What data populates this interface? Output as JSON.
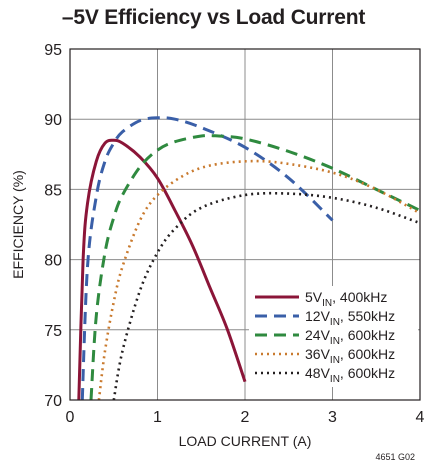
{
  "title": "–5V Efficiency vs Load Current",
  "figure_ref": "4651 G02",
  "chart_data": {
    "type": "line",
    "title": "–5V Efficiency vs Load Current",
    "xlabel": "LOAD CURRENT (A)",
    "ylabel": "EFFICIENCY (%)",
    "xlim": [
      0,
      4
    ],
    "ylim": [
      70,
      95
    ],
    "xticks": [
      "0",
      "1",
      "2",
      "3",
      "4"
    ],
    "yticks": [
      "70",
      "75",
      "80",
      "85",
      "90",
      "95"
    ],
    "grid": true,
    "legend_position": "bottom-right",
    "series": [
      {
        "name": "5VIN, 400kHz",
        "vin": "5V",
        "sub": "IN",
        "freq": ", 400kHz",
        "color": "#8b1538",
        "style": "solid",
        "x": [
          0.1,
          0.15,
          0.2,
          0.3,
          0.4,
          0.5,
          0.6,
          0.8,
          1.0,
          1.2,
          1.4,
          1.6,
          1.8,
          2.0
        ],
        "y": [
          70,
          80,
          84,
          87,
          88.3,
          88.5,
          88.3,
          87.3,
          85.8,
          83.5,
          81,
          78,
          75,
          71.3
        ]
      },
      {
        "name": "12VIN, 550kHz",
        "vin": "12V",
        "sub": "IN",
        "freq": ", 550kHz",
        "color": "#3a5fa8",
        "style": "dash",
        "x": [
          0.14,
          0.2,
          0.3,
          0.4,
          0.5,
          0.6,
          0.8,
          1.0,
          1.2,
          1.5,
          2.0,
          2.5,
          3.0
        ],
        "y": [
          70,
          79.5,
          84.5,
          87,
          88.3,
          89.1,
          89.9,
          90.1,
          90,
          89.4,
          88,
          85.8,
          82.8
        ]
      },
      {
        "name": "24VIN, 600kHz",
        "vin": "24V",
        "sub": "IN",
        "freq": ", 600kHz",
        "color": "#2f8a3f",
        "style": "dash",
        "x": [
          0.24,
          0.3,
          0.4,
          0.5,
          0.6,
          0.8,
          1.0,
          1.2,
          1.5,
          1.7,
          2.0,
          2.5,
          3.0,
          3.5,
          4.0
        ],
        "y": [
          70,
          76,
          80.5,
          83,
          84.6,
          86.6,
          87.8,
          88.4,
          88.8,
          88.8,
          88.6,
          87.7,
          86.5,
          85,
          83.5
        ]
      },
      {
        "name": "36VIN, 600kHz",
        "vin": "36V",
        "sub": "IN",
        "freq": ", 600kHz",
        "color": "#c97a2e",
        "style": "dot",
        "x": [
          0.33,
          0.4,
          0.5,
          0.6,
          0.8,
          1.0,
          1.3,
          1.6,
          2.0,
          2.4,
          3.0,
          3.5,
          4.0
        ],
        "y": [
          70,
          73.5,
          77,
          79.5,
          82.8,
          84.6,
          86,
          86.7,
          87,
          86.9,
          86.2,
          85,
          83.3
        ]
      },
      {
        "name": "48VIN, 600kHz",
        "vin": "48V",
        "sub": "IN",
        "freq": ", 600kHz",
        "color": "#231f20",
        "style": "dot",
        "x": [
          0.5,
          0.6,
          0.8,
          1.0,
          1.2,
          1.5,
          2.0,
          2.5,
          3.0,
          3.5,
          4.0
        ],
        "y": [
          70,
          73.5,
          77.8,
          80.5,
          82.2,
          83.7,
          84.6,
          84.7,
          84.4,
          83.7,
          82.6
        ]
      }
    ]
  }
}
